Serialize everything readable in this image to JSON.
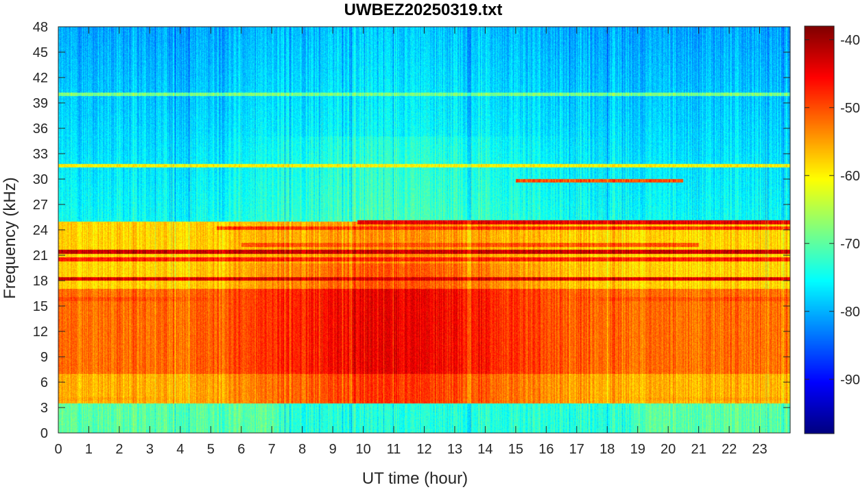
{
  "chart_data": {
    "type": "heatmap",
    "title": "UWBEZ20250319.txt",
    "xlabel": "UT time (hour)",
    "ylabel": "Frequency (kHz)",
    "xlim": [
      0,
      24
    ],
    "ylim": [
      0,
      48
    ],
    "x_ticks": [
      0,
      1,
      2,
      3,
      4,
      5,
      6,
      7,
      8,
      9,
      10,
      11,
      12,
      13,
      14,
      15,
      16,
      17,
      18,
      19,
      20,
      21,
      22,
      23
    ],
    "x_tick_labels": [
      "0",
      "1",
      "2",
      "3",
      "4",
      "5",
      "6",
      "7",
      "8",
      "9",
      "10",
      "11",
      "12",
      "13",
      "14",
      "15",
      "16",
      "17",
      "18",
      "19",
      "20",
      "21",
      "22",
      "23"
    ],
    "y_ticks": [
      0,
      3,
      6,
      9,
      12,
      15,
      18,
      21,
      24,
      27,
      30,
      33,
      36,
      39,
      42,
      45,
      48
    ],
    "y_tick_labels": [
      "0",
      "3",
      "6",
      "9",
      "12",
      "15",
      "18",
      "21",
      "24",
      "27",
      "30",
      "33",
      "36",
      "39",
      "42",
      "45",
      "48"
    ],
    "colorbar": {
      "colormap": "jet",
      "clim": [
        -98,
        -38
      ],
      "ticks": [
        -40,
        -50,
        -60,
        -70,
        -80,
        -90
      ],
      "tick_labels": [
        "-40",
        "-50",
        "-60",
        "-70",
        "-80",
        "-90"
      ]
    },
    "features": {
      "band_levels_dB": [
        {
          "freq_range_kHz": [
            0,
            3.5
          ],
          "level": -70
        },
        {
          "freq_range_kHz": [
            3.5,
            7
          ],
          "level": -56
        },
        {
          "freq_range_kHz": [
            7,
            17
          ],
          "level": -52
        },
        {
          "freq_range_kHz": [
            17,
            25
          ],
          "level": -58
        },
        {
          "freq_range_kHz": [
            25,
            48
          ],
          "level": -75
        }
      ],
      "daytime_enhancement": {
        "hours": [
          8,
          19
        ],
        "peak_hour": 11,
        "delta_dB": 8
      },
      "narrowband_lines": [
        {
          "freq_kHz": 21.4,
          "hours": [
            0,
            24
          ],
          "level": -42
        },
        {
          "freq_kHz": 18.2,
          "hours": [
            0,
            24
          ],
          "level": -43
        },
        {
          "freq_kHz": 24.9,
          "hours": [
            9.8,
            24
          ],
          "level": -44
        },
        {
          "freq_kHz": 24.2,
          "hours": [
            5.2,
            24
          ],
          "level": -48
        },
        {
          "freq_kHz": 22.2,
          "hours": [
            6,
            21
          ],
          "level": -50
        },
        {
          "freq_kHz": 20.5,
          "hours": [
            0,
            24
          ],
          "level": -47
        },
        {
          "freq_kHz": 31.6,
          "hours": [
            0,
            24
          ],
          "level": -60
        },
        {
          "freq_kHz": 29.8,
          "hours": [
            15,
            20.5
          ],
          "level": -50
        },
        {
          "freq_kHz": 15.8,
          "hours": [
            0,
            24
          ],
          "level": -50
        },
        {
          "freq_kHz": 8.0,
          "hours": [
            0,
            24
          ],
          "level": -55
        },
        {
          "freq_kHz": 4.0,
          "hours": [
            0,
            24
          ],
          "level": -55
        },
        {
          "freq_kHz": 40.0,
          "hours": [
            0,
            24
          ],
          "level": -68
        }
      ]
    }
  }
}
